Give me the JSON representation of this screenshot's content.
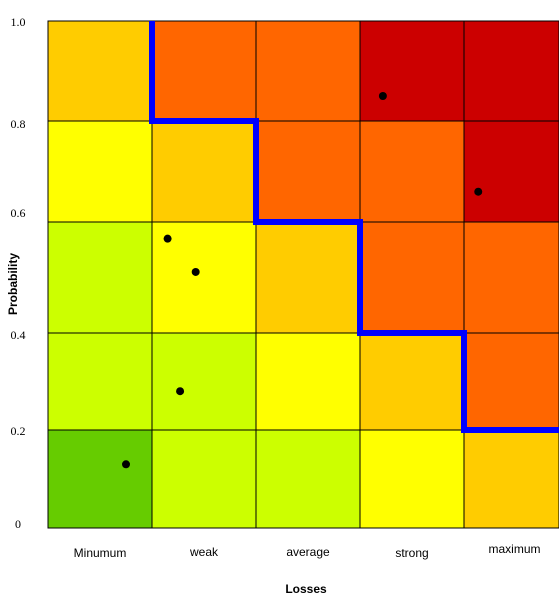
{
  "chart_data": {
    "type": "heatmap",
    "title": "",
    "xlabel": "Losses",
    "ylabel": "Probability",
    "x_categories": [
      "Minumum",
      "weak",
      "average",
      "strong",
      "maximum"
    ],
    "y_tick_labels": [
      "0",
      "0.2",
      "0.4",
      "0.6",
      "0.8",
      "1.0"
    ],
    "ylim": [
      0,
      1
    ],
    "cell_colors_top_to_bottom": [
      [
        "#ffcc00",
        "#ff6600",
        "#ff6600",
        "#cc0000",
        "#cc0000"
      ],
      [
        "#ffff00",
        "#ffcc00",
        "#ff6600",
        "#ff6600",
        "#cc0000"
      ],
      [
        "#ccff00",
        "#ffff00",
        "#ffcc00",
        "#ff6600",
        "#ff6600"
      ],
      [
        "#ccff00",
        "#ccff00",
        "#ffff00",
        "#ffcc00",
        "#ff6600"
      ],
      [
        "#66cc00",
        "#ccff00",
        "#ccff00",
        "#ffff00",
        "#ffcc00"
      ]
    ],
    "risk_boundary": {
      "color": "#0000ff",
      "points": [
        [
          1.0,
          1.0
        ],
        [
          1.0,
          0.8
        ],
        [
          2.0,
          0.8
        ],
        [
          2.0,
          0.6
        ],
        [
          3.0,
          0.6
        ],
        [
          3.0,
          0.4
        ],
        [
          4.0,
          0.4
        ],
        [
          4.0,
          0.2
        ],
        [
          5.0,
          0.2
        ]
      ]
    },
    "points": [
      {
        "x": 0.75,
        "y": 0.13
      },
      {
        "x": 1.27,
        "y": 0.28
      },
      {
        "x": 1.15,
        "y": 0.57
      },
      {
        "x": 1.42,
        "y": 0.51
      },
      {
        "x": 3.22,
        "y": 0.85
      },
      {
        "x": 4.15,
        "y": 0.66
      }
    ],
    "grid": true,
    "legend": "none"
  }
}
